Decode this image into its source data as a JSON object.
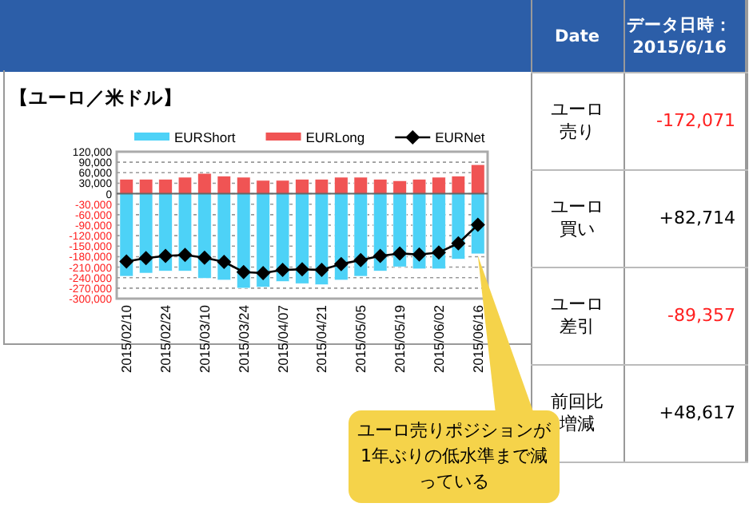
{
  "chart_data": {
    "type": "bar",
    "title": "【ユーロ／米ドル】",
    "stacked": true,
    "legend": "top",
    "grid": "y",
    "marker": "diamond",
    "categories": [
      "2015/02/10",
      null,
      "2015/02/24",
      null,
      "2015/03/10",
      null,
      "2015/03/24",
      null,
      "2015/04/07",
      null,
      "2015/04/21",
      null,
      "2015/05/05",
      null,
      "2015/05/19",
      null,
      "2015/06/02",
      null,
      "2015/06/16"
    ],
    "series": [
      {
        "name": "EURShort",
        "color": "#4dd2f7",
        "values": [
          -236000,
          -227000,
          -221000,
          -221000,
          -242000,
          -247000,
          -270000,
          -267000,
          -251000,
          -257000,
          -260000,
          -247000,
          -236000,
          -221000,
          -209000,
          -215000,
          -215000,
          -187000,
          -172000
        ]
      },
      {
        "name": "EURLong",
        "color": "#f05454",
        "values": [
          41000,
          41000,
          41000,
          47000,
          58000,
          50000,
          47000,
          38000,
          38000,
          41000,
          41000,
          47000,
          47000,
          41000,
          37000,
          41000,
          47000,
          50000,
          83000
        ]
      },
      {
        "name": "EURNet",
        "type": "line",
        "color": "#000000",
        "values": [
          -194000,
          -184000,
          -178000,
          -175000,
          -183000,
          -195000,
          -224000,
          -227000,
          -218000,
          -216000,
          -218000,
          -201000,
          -190000,
          -178000,
          -171000,
          -174000,
          -168000,
          -142000,
          -89000
        ]
      }
    ],
    "ylim": [
      -300000,
      120000
    ],
    "yticks": [
      {
        "value": 120000,
        "label": "120,000"
      },
      {
        "value": 90000,
        "label": "90,000"
      },
      {
        "value": 60000,
        "label": "60,000"
      },
      {
        "value": 30000,
        "label": "30,000"
      },
      0,
      {
        "value": -30000,
        "label": "-30,000"
      },
      {
        "value": -60000,
        "label": "-60,000"
      },
      {
        "value": -90000,
        "label": "-90,000"
      },
      {
        "value": -120000,
        "label": "-120,000"
      },
      {
        "value": -150000,
        "label": "-150,000"
      },
      {
        "value": -180000,
        "label": "-180,000"
      },
      {
        "value": -210000,
        "label": "-210,000"
      },
      {
        "value": -240000,
        "label": "-240,000"
      },
      {
        "value": -270000,
        "label": "-270,000"
      },
      {
        "value": -300000,
        "label": "-300,000"
      }
    ],
    "annotations": [
      "Date",
      "データ日時：2015/6/16",
      "ユーロ売り",
      "-172,071",
      "ユーロ買い",
      "+82,714",
      "ユーロ差引",
      "-89,357",
      "前回比増減",
      "+48,617",
      {
        "text": "ユーロ売りポジションが1年ぶりの低水準まで減っている",
        "x": "2015/06/16",
        "y": -172000
      }
    ]
  }
}
